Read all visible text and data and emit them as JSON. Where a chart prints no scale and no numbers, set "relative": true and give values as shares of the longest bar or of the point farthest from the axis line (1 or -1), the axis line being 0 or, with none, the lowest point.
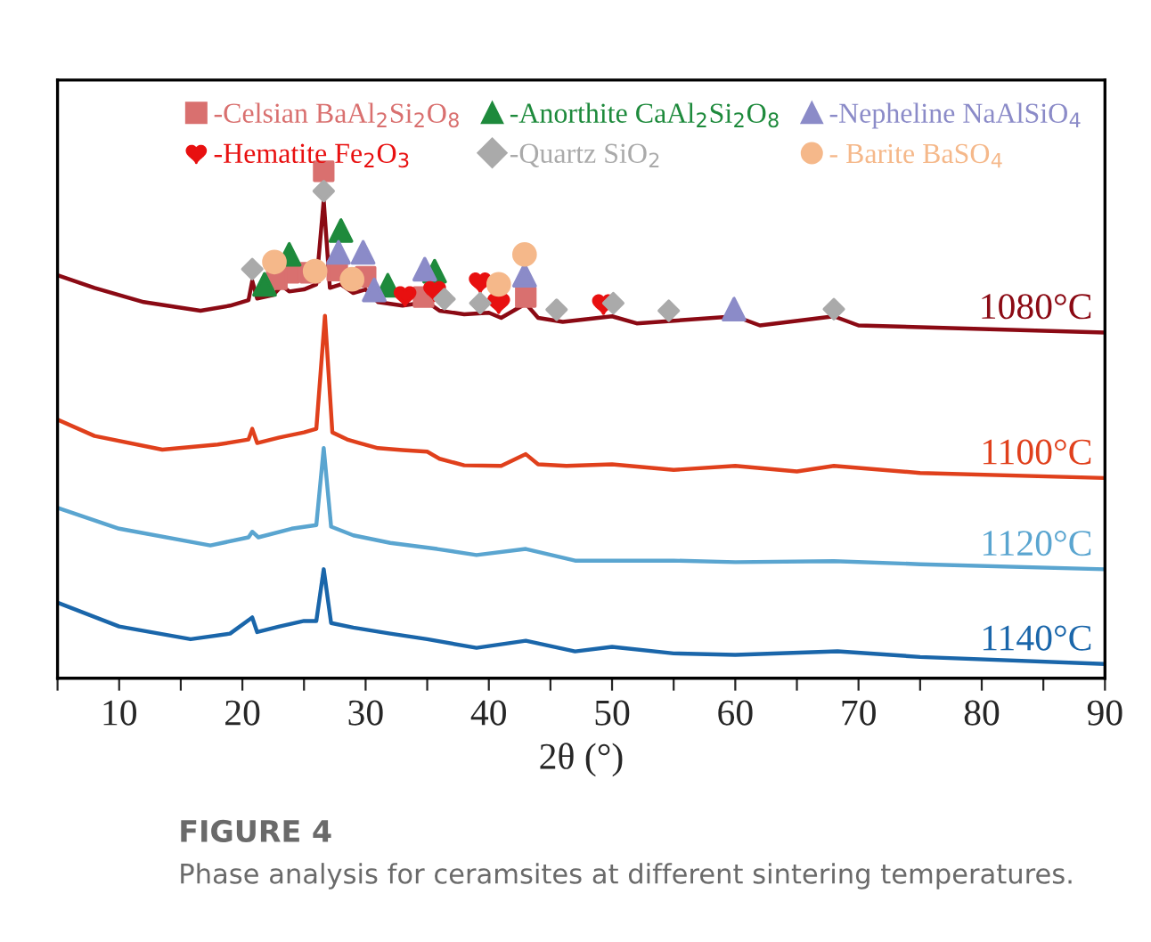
{
  "chart_data": {
    "type": "line",
    "relative": true,
    "xlabel": "2θ (°)",
    "xlim": [
      5,
      90
    ],
    "xticks": [
      {
        "value": 5,
        "label": null
      },
      10,
      {
        "value": 15,
        "label": null
      },
      20,
      {
        "value": 25,
        "label": null
      },
      30,
      {
        "value": 35,
        "label": null
      },
      40,
      {
        "value": 45,
        "label": null
      },
      50,
      {
        "value": 55,
        "label": null
      },
      60,
      {
        "value": 65,
        "label": null
      },
      70,
      {
        "value": 75,
        "label": null
      },
      80,
      {
        "value": 85,
        "label": null
      },
      90
    ],
    "tick_labels": "x",
    "grid": false,
    "legend": "top right",
    "line_style": "solid",
    "annotations": [
      "FIGURE 4",
      "Phase analysis for ceramsites at different sintering temperatures."
    ],
    "series": [
      {
        "name": "1080°C",
        "marker": "none",
        "color": "#8b0a14",
        "x": [
          5,
          8,
          12,
          16.6,
          19,
          20.5,
          20.8,
          21.2,
          22.5,
          23.2,
          23.8,
          25,
          26,
          26.6,
          27.1,
          28,
          29,
          30,
          31,
          33,
          35,
          36,
          38,
          40,
          41,
          43,
          44,
          46,
          50,
          52,
          60,
          62,
          68,
          70,
          80,
          90
        ],
        "values": [
          0.795,
          0.77,
          0.742,
          0.725,
          0.735,
          0.746,
          0.784,
          0.749,
          0.756,
          0.774,
          0.763,
          0.767,
          0.777,
          0.943,
          0.77,
          0.777,
          0.76,
          0.767,
          0.742,
          0.735,
          0.742,
          0.725,
          0.718,
          0.721,
          0.711,
          0.739,
          0.711,
          0.703,
          0.714,
          0.7,
          0.714,
          0.696,
          0.714,
          0.696,
          0.689,
          0.682
        ]
      },
      {
        "name": "1100°C",
        "marker": "none",
        "color": "#e0401c",
        "x": [
          5,
          8,
          13.5,
          18,
          20.5,
          20.8,
          21.2,
          23,
          25,
          26,
          26.7,
          27.3,
          28.5,
          29.5,
          31,
          33,
          35,
          36,
          38,
          41,
          43,
          44,
          46.3,
          50,
          55,
          60,
          65,
          68,
          75,
          90
        ],
        "values": [
          0.51,
          0.478,
          0.451,
          0.461,
          0.471,
          0.492,
          0.464,
          0.475,
          0.485,
          0.492,
          0.715,
          0.485,
          0.471,
          0.464,
          0.454,
          0.45,
          0.447,
          0.433,
          0.42,
          0.419,
          0.442,
          0.422,
          0.419,
          0.422,
          0.411,
          0.419,
          0.408,
          0.419,
          0.405,
          0.395
        ]
      },
      {
        "name": "1120°C",
        "marker": "none",
        "color": "#5aa5d0",
        "x": [
          5,
          10,
          17.4,
          20.5,
          20.8,
          21.3,
          24,
          26,
          26.6,
          27.2,
          29,
          32,
          35.8,
          39,
          43,
          47,
          55,
          60,
          68,
          75,
          90
        ],
        "values": [
          0.336,
          0.295,
          0.262,
          0.278,
          0.289,
          0.278,
          0.295,
          0.302,
          0.454,
          0.299,
          0.282,
          0.267,
          0.255,
          0.243,
          0.255,
          0.232,
          0.232,
          0.229,
          0.231,
          0.225,
          0.215
        ]
      },
      {
        "name": "1140°C",
        "marker": "none",
        "color": "#1a66aa",
        "x": [
          5,
          10,
          15.8,
          19,
          20.8,
          21.2,
          23,
          25,
          26,
          26.6,
          27.2,
          29,
          32,
          35,
          39,
          43,
          47,
          50,
          55,
          60,
          68.3,
          75,
          90
        ],
        "values": [
          0.149,
          0.102,
          0.077,
          0.088,
          0.12,
          0.091,
          0.102,
          0.113,
          0.113,
          0.215,
          0.109,
          0.1,
          0.088,
          0.077,
          0.06,
          0.074,
          0.053,
          0.062,
          0.049,
          0.046,
          0.053,
          0.042,
          0.028
        ]
      },
      {
        "name": "-Celsian BaAl$_{2}$Si$_{2}$O$_{8}$",
        "type": "scatter",
        "marker": "square",
        "color": "#d9706f",
        "x": [
          26.6,
          23.8,
          22.8,
          25.5,
          27.7,
          30.0,
          34.7,
          43.0
        ],
        "values": [
          1.0,
          0.8,
          0.787,
          0.8,
          0.804,
          0.792,
          0.752,
          0.752
        ]
      },
      {
        "name": "-Anorthite CaAl$_{2}$Si$_{2}$O$_{8}$",
        "type": "scatter",
        "marker": "triangle",
        "color": "#1e8a3c",
        "x": [
          23.8,
          21.8,
          28.0,
          31.8,
          35.6
        ],
        "values": [
          0.836,
          0.777,
          0.883,
          0.775,
          0.803
        ]
      },
      {
        "name": "-Nepheline NaAlSiO$_{4}$",
        "type": "scatter",
        "marker": "triangle",
        "color": "#8b8bc8",
        "x": [
          27.8,
          29.8,
          30.7,
          34.8,
          42.9,
          59.9
        ],
        "values": [
          0.84,
          0.84,
          0.766,
          0.807,
          0.795,
          0.728
        ]
      },
      {
        "name": "-Hematite Fe$_{2}$O$_{3}$",
        "type": "scatter",
        "color": "#e81010",
        "x": [
          33.2,
          35.6,
          39.3,
          40.8,
          49.3
        ],
        "values": [
          0.756,
          0.766,
          0.783,
          0.742,
          0.74
        ]
      },
      {
        "name": "-Quartz SiO$_{2}$",
        "type": "scatter",
        "marker": "diamond",
        "color": "#aaaaaa",
        "x": [
          26.6,
          20.8,
          36.4,
          39.3,
          45.5,
          50.1,
          54.6,
          68.0
        ],
        "values": [
          0.961,
          0.807,
          0.748,
          0.74,
          0.727,
          0.74,
          0.725,
          0.728
        ]
      },
      {
        "name": "- Barite BaSO$_{4}$",
        "type": "scatter",
        "marker": "circle",
        "color": "#f5b88a",
        "x": [
          22.6,
          25.9,
          28.9,
          40.8,
          42.9
        ],
        "values": [
          0.821,
          0.803,
          0.787,
          0.777,
          0.836
        ]
      }
    ]
  }
}
